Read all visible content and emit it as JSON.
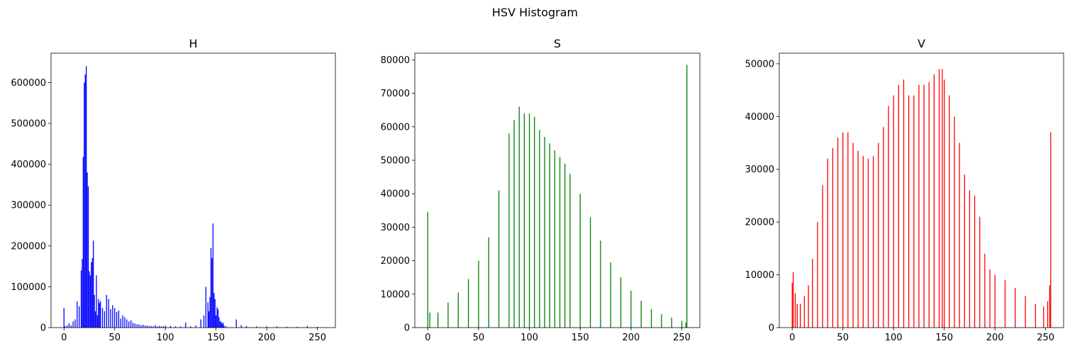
{
  "figure": {
    "title": "HSV Histogram"
  },
  "chart_data": [
    {
      "type": "bar",
      "title": "H",
      "xlabel": "",
      "ylabel": "",
      "xlim": [
        -12.75,
        267.75
      ],
      "ylim": [
        0,
        672000
      ],
      "xticks": [
        0,
        50,
        100,
        150,
        200,
        250
      ],
      "yticks": [
        0,
        100000,
        200000,
        300000,
        400000,
        500000,
        600000
      ],
      "color": "#0000ff",
      "series": [
        {
          "x": [
            0,
            1,
            3,
            5,
            7,
            9,
            11,
            13,
            15,
            17,
            18,
            19,
            20,
            21,
            22,
            23,
            24,
            25,
            26,
            27,
            28,
            29,
            30,
            31,
            32,
            33,
            34,
            35,
            36,
            38,
            40,
            42,
            44,
            46,
            48,
            50,
            52,
            54,
            56,
            58,
            60,
            62,
            64,
            66,
            68,
            70,
            72,
            74,
            76,
            78,
            80,
            82,
            84,
            86,
            88,
            90,
            92,
            94,
            96,
            98,
            100,
            105,
            110,
            115,
            120,
            125,
            130,
            135,
            138,
            140,
            142,
            143,
            144,
            145,
            146,
            147,
            148,
            149,
            150,
            151,
            152,
            153,
            154,
            155,
            156,
            157,
            158,
            160,
            170,
            175,
            180,
            190,
            200,
            210,
            220,
            230,
            240,
            250
          ],
          "values": [
            48000,
            3000,
            5000,
            10000,
            5000,
            15000,
            20000,
            64000,
            52000,
            140000,
            168000,
            418000,
            600000,
            620000,
            640000,
            380000,
            346000,
            138000,
            128000,
            160000,
            170000,
            213000,
            80000,
            40000,
            128000,
            30000,
            70000,
            60000,
            65000,
            48000,
            40000,
            80000,
            70000,
            45000,
            55000,
            48000,
            38000,
            42000,
            22000,
            30000,
            25000,
            20000,
            15000,
            18000,
            12000,
            10000,
            8000,
            8000,
            6000,
            7000,
            5000,
            5000,
            4000,
            4000,
            3000,
            6000,
            3000,
            4000,
            3000,
            3000,
            5000,
            4000,
            3000,
            3000,
            12000,
            3000,
            5000,
            20000,
            30000,
            100000,
            62000,
            40000,
            75000,
            195000,
            170000,
            255000,
            85000,
            70000,
            30000,
            50000,
            45000,
            25000,
            15000,
            15000,
            10000,
            12000,
            5000,
            3000,
            20000,
            6000,
            4000,
            3000,
            3000,
            3000,
            2000,
            2000,
            4000,
            2000
          ]
        }
      ]
    },
    {
      "type": "bar",
      "title": "S",
      "xlabel": "",
      "ylabel": "",
      "xlim": [
        -12.75,
        267.75
      ],
      "ylim": [
        0,
        82000
      ],
      "xticks": [
        0,
        50,
        100,
        150,
        200,
        250
      ],
      "yticks": [
        0,
        10000,
        20000,
        30000,
        40000,
        50000,
        60000,
        70000,
        80000
      ],
      "color": "#008000",
      "series": [
        {
          "x": [
            0,
            2,
            10,
            20,
            30,
            40,
            50,
            60,
            70,
            80,
            85,
            90,
            95,
            100,
            105,
            110,
            115,
            120,
            125,
            130,
            135,
            140,
            150,
            160,
            170,
            180,
            190,
            200,
            210,
            220,
            230,
            240,
            250,
            254,
            255
          ],
          "values": [
            34500,
            4500,
            4500,
            7500,
            10500,
            14500,
            20000,
            27000,
            41000,
            58000,
            62000,
            66000,
            64000,
            64000,
            63000,
            59000,
            57000,
            55000,
            53000,
            51000,
            49000,
            46000,
            40000,
            33000,
            26000,
            19500,
            15000,
            11000,
            8000,
            5500,
            4000,
            3000,
            2000,
            1500,
            78500
          ]
        }
      ]
    },
    {
      "type": "bar",
      "title": "V",
      "xlabel": "",
      "ylabel": "",
      "xlim": [
        -12.75,
        267.75
      ],
      "ylim": [
        0,
        52000
      ],
      "xticks": [
        0,
        50,
        100,
        150,
        200,
        250
      ],
      "yticks": [
        0,
        10000,
        20000,
        30000,
        40000,
        50000
      ],
      "color": "#ff0000",
      "series": [
        {
          "x": [
            0,
            1,
            3,
            5,
            8,
            12,
            16,
            20,
            25,
            30,
            35,
            40,
            45,
            50,
            55,
            60,
            65,
            70,
            75,
            80,
            85,
            90,
            95,
            100,
            105,
            110,
            115,
            120,
            125,
            130,
            135,
            140,
            145,
            148,
            150,
            155,
            160,
            165,
            170,
            175,
            180,
            185,
            190,
            195,
            200,
            210,
            220,
            230,
            240,
            248,
            252,
            254,
            255
          ],
          "values": [
            8500,
            10500,
            6500,
            4500,
            4500,
            6000,
            8000,
            13000,
            20000,
            27000,
            32000,
            34000,
            36000,
            37000,
            37000,
            35000,
            33500,
            32500,
            32000,
            32500,
            35000,
            38000,
            42000,
            44000,
            46000,
            47000,
            44000,
            44000,
            46000,
            46000,
            46500,
            48000,
            49000,
            49000,
            47000,
            44000,
            40000,
            35000,
            29000,
            26000,
            25000,
            21000,
            14000,
            11000,
            10000,
            9000,
            7500,
            6000,
            4500,
            4000,
            5000,
            8000,
            37000
          ]
        }
      ]
    }
  ]
}
